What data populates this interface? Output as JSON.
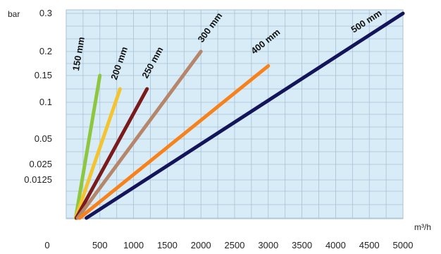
{
  "chart_data": {
    "type": "line",
    "y_unit": "bar",
    "x_unit": "m³/h",
    "x_ticks": [
      "0",
      "500",
      "1000",
      "1500",
      "2000",
      "2500",
      "3000",
      "3500",
      "4000",
      "4500",
      "5000"
    ],
    "y_ticks": [
      "0.3",
      "0.2",
      "0.15",
      "0.1",
      "0.05",
      "0.025",
      "0.0125"
    ],
    "grid": true,
    "background": "#d8ecf7",
    "series": [
      {
        "name": "150 mm",
        "color": "#8dc63f",
        "points": [
          [
            140,
            0
          ],
          [
            500,
            0.15
          ]
        ]
      },
      {
        "name": "200 mm",
        "color": "#f4c430",
        "points": [
          [
            140,
            0
          ],
          [
            800,
            0.125
          ]
        ]
      },
      {
        "name": "250 mm",
        "color": "#7a1a1a",
        "points": [
          [
            150,
            0
          ],
          [
            1200,
            0.125
          ]
        ]
      },
      {
        "name": "300 mm",
        "color": "#b5866a",
        "points": [
          [
            170,
            0
          ],
          [
            2000,
            0.2
          ]
        ]
      },
      {
        "name": "400 mm",
        "color": "#f7821b",
        "points": [
          [
            200,
            0
          ],
          [
            3000,
            0.17
          ]
        ]
      },
      {
        "name": "500 mm",
        "color": "#14145a",
        "points": [
          [
            300,
            0
          ],
          [
            5000,
            0.3
          ]
        ]
      }
    ]
  }
}
